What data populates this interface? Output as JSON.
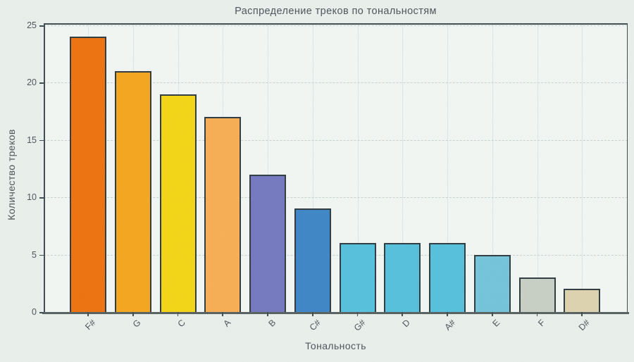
{
  "chart_data": {
    "type": "bar",
    "title": "Распределение треков по тональностям",
    "xlabel": "Тональность",
    "ylabel": "Количество треков",
    "categories": [
      "F#",
      "G",
      "C",
      "A",
      "B",
      "C#",
      "G#",
      "D",
      "A#",
      "E",
      "F",
      "D#"
    ],
    "values": [
      24,
      21,
      19,
      17,
      12,
      9,
      6,
      6,
      6,
      5,
      3,
      2
    ],
    "bar_colors": [
      "#ee720e",
      "#f4a61f",
      "#f3d515",
      "#f7ae54",
      "#7478bf",
      "#3e86c6",
      "#55c0db",
      "#55c0db",
      "#55c0db",
      "#74c4da",
      "#c8cfc4",
      "#ddd2ae"
    ],
    "bar_edge_color": "#2e3b40",
    "yticks": [
      0,
      5,
      10,
      15,
      20,
      25
    ],
    "ylim": [
      0,
      25
    ],
    "xtick_rotation": 45,
    "grid": true,
    "legend": "none",
    "background_color": "#e9efeb",
    "plot_background_color": "#f2f6f3",
    "horizontal_grid_color": "#c6d2d3",
    "vertical_grid_color": "#dce6e6",
    "spine_color": "#3f4c52",
    "text_color": "#4b545b"
  }
}
